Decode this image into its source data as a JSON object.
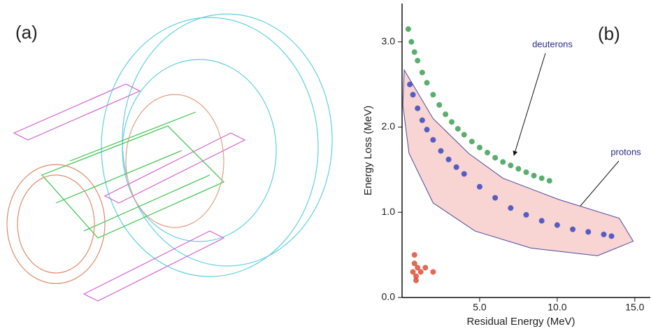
{
  "panel_a_label": "(a)",
  "chart_data": {
    "type": "scatter",
    "panel_label": "(b)",
    "x_label": "Residual Energy (MeV)",
    "y_label": "Energy Loss (MeV)",
    "xlim": [
      0,
      16
    ],
    "ylim": [
      0,
      3.45
    ],
    "xticks": [
      {
        "value": 5,
        "label": "5.0"
      },
      {
        "value": 10,
        "label": "10.0"
      },
      {
        "value": 15,
        "label": "15.0"
      }
    ],
    "yticks": [
      {
        "value": 0,
        "label": "0.0"
      },
      {
        "value": 1,
        "label": "1.0"
      },
      {
        "value": 2,
        "label": "2.0"
      },
      {
        "value": 3,
        "label": "3.0"
      }
    ],
    "gate": {
      "color": "#f8d4d2",
      "edge": "#4a4aa0",
      "x": [
        0.14,
        2.0,
        4.3,
        6.5,
        10.1,
        14.0,
        14.9,
        12.6,
        8.3,
        4.7,
        2.0,
        0.45,
        0.05
      ],
      "y": [
        2.67,
        2.1,
        1.69,
        1.4,
        1.15,
        0.93,
        0.66,
        0.49,
        0.58,
        0.78,
        1.11,
        1.69,
        2.26
      ]
    },
    "series": [
      {
        "color": "#2f9a4a",
        "x": [
          0.4,
          0.6,
          0.8,
          1.0,
          1.3,
          1.6,
          2.0,
          2.4,
          2.8,
          3.2,
          3.6,
          4.0,
          4.5,
          5.0,
          5.5,
          6.0,
          6.5,
          7.0,
          7.5,
          8.0,
          8.5,
          9.0,
          9.5
        ],
        "y": [
          3.15,
          3.0,
          2.88,
          2.78,
          2.64,
          2.52,
          2.38,
          2.26,
          2.15,
          2.06,
          1.98,
          1.91,
          1.83,
          1.76,
          1.7,
          1.64,
          1.59,
          1.55,
          1.51,
          1.47,
          1.43,
          1.4,
          1.37
        ]
      },
      {
        "color": "#2c3fc0",
        "x": [
          0.5,
          0.7,
          1.0,
          1.3,
          1.6,
          2.0,
          2.5,
          3.0,
          3.5,
          4.0,
          5.0,
          6.0,
          7.0,
          8.0,
          9.0,
          10.0,
          11.0,
          12.0,
          13.0,
          13.5
        ],
        "y": [
          2.5,
          2.38,
          2.22,
          2.08,
          1.97,
          1.85,
          1.72,
          1.62,
          1.53,
          1.45,
          1.3,
          1.17,
          1.05,
          0.97,
          0.9,
          0.85,
          0.8,
          0.77,
          0.74,
          0.72
        ]
      },
      {
        "color": "#d8452a",
        "x": [
          0.7,
          0.8,
          0.9,
          1.0,
          0.8,
          0.9,
          1.2,
          1.5,
          2.0
        ],
        "y": [
          0.3,
          0.4,
          0.25,
          0.35,
          0.5,
          0.2,
          0.3,
          0.35,
          0.3
        ]
      }
    ],
    "annotations": [
      "deuterons",
      "protons"
    ]
  }
}
